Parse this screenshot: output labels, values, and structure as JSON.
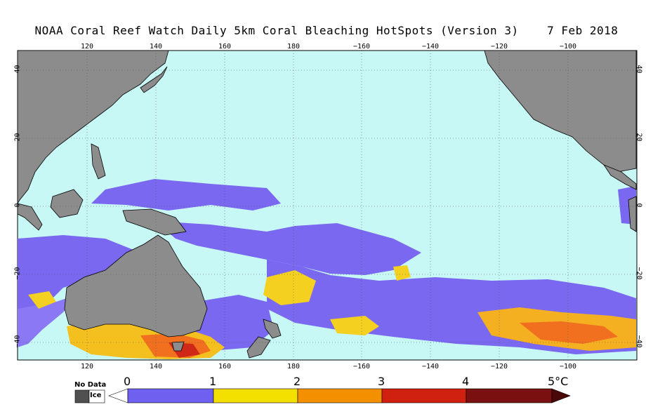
{
  "title": "NOAA Coral Reef Watch Daily 5km Coral Bleaching HotSpots (Version 3)    7 Feb 2018",
  "colors": {
    "ocean": "#c8f8f6",
    "land": "#8c8c8c",
    "nodata": "#505050",
    "ice": "#ffffff",
    "hotspot_low": "#7060f0",
    "hotspot_mid": "#ffee00",
    "hotspot_high": "#ff6600",
    "hotspot_max": "#c01010"
  },
  "axes": {
    "top_ticks": [
      "120",
      "140",
      "160",
      "180",
      "−160",
      "−140",
      "−120",
      "−100"
    ],
    "bottom_ticks": [
      "120",
      "140",
      "160",
      "180",
      "−160",
      "−140",
      "−120",
      "−100"
    ],
    "left_ticks": [
      "40",
      "20",
      "0",
      "−20",
      "−40"
    ],
    "right_ticks": [
      "40",
      "20",
      "0",
      "−20",
      "−40"
    ]
  },
  "legend": {
    "nodata_label": "No Data",
    "ice_label": "Ice",
    "scale_labels": [
      "0",
      "1",
      "2",
      "3",
      "4",
      "5°C"
    ]
  }
}
